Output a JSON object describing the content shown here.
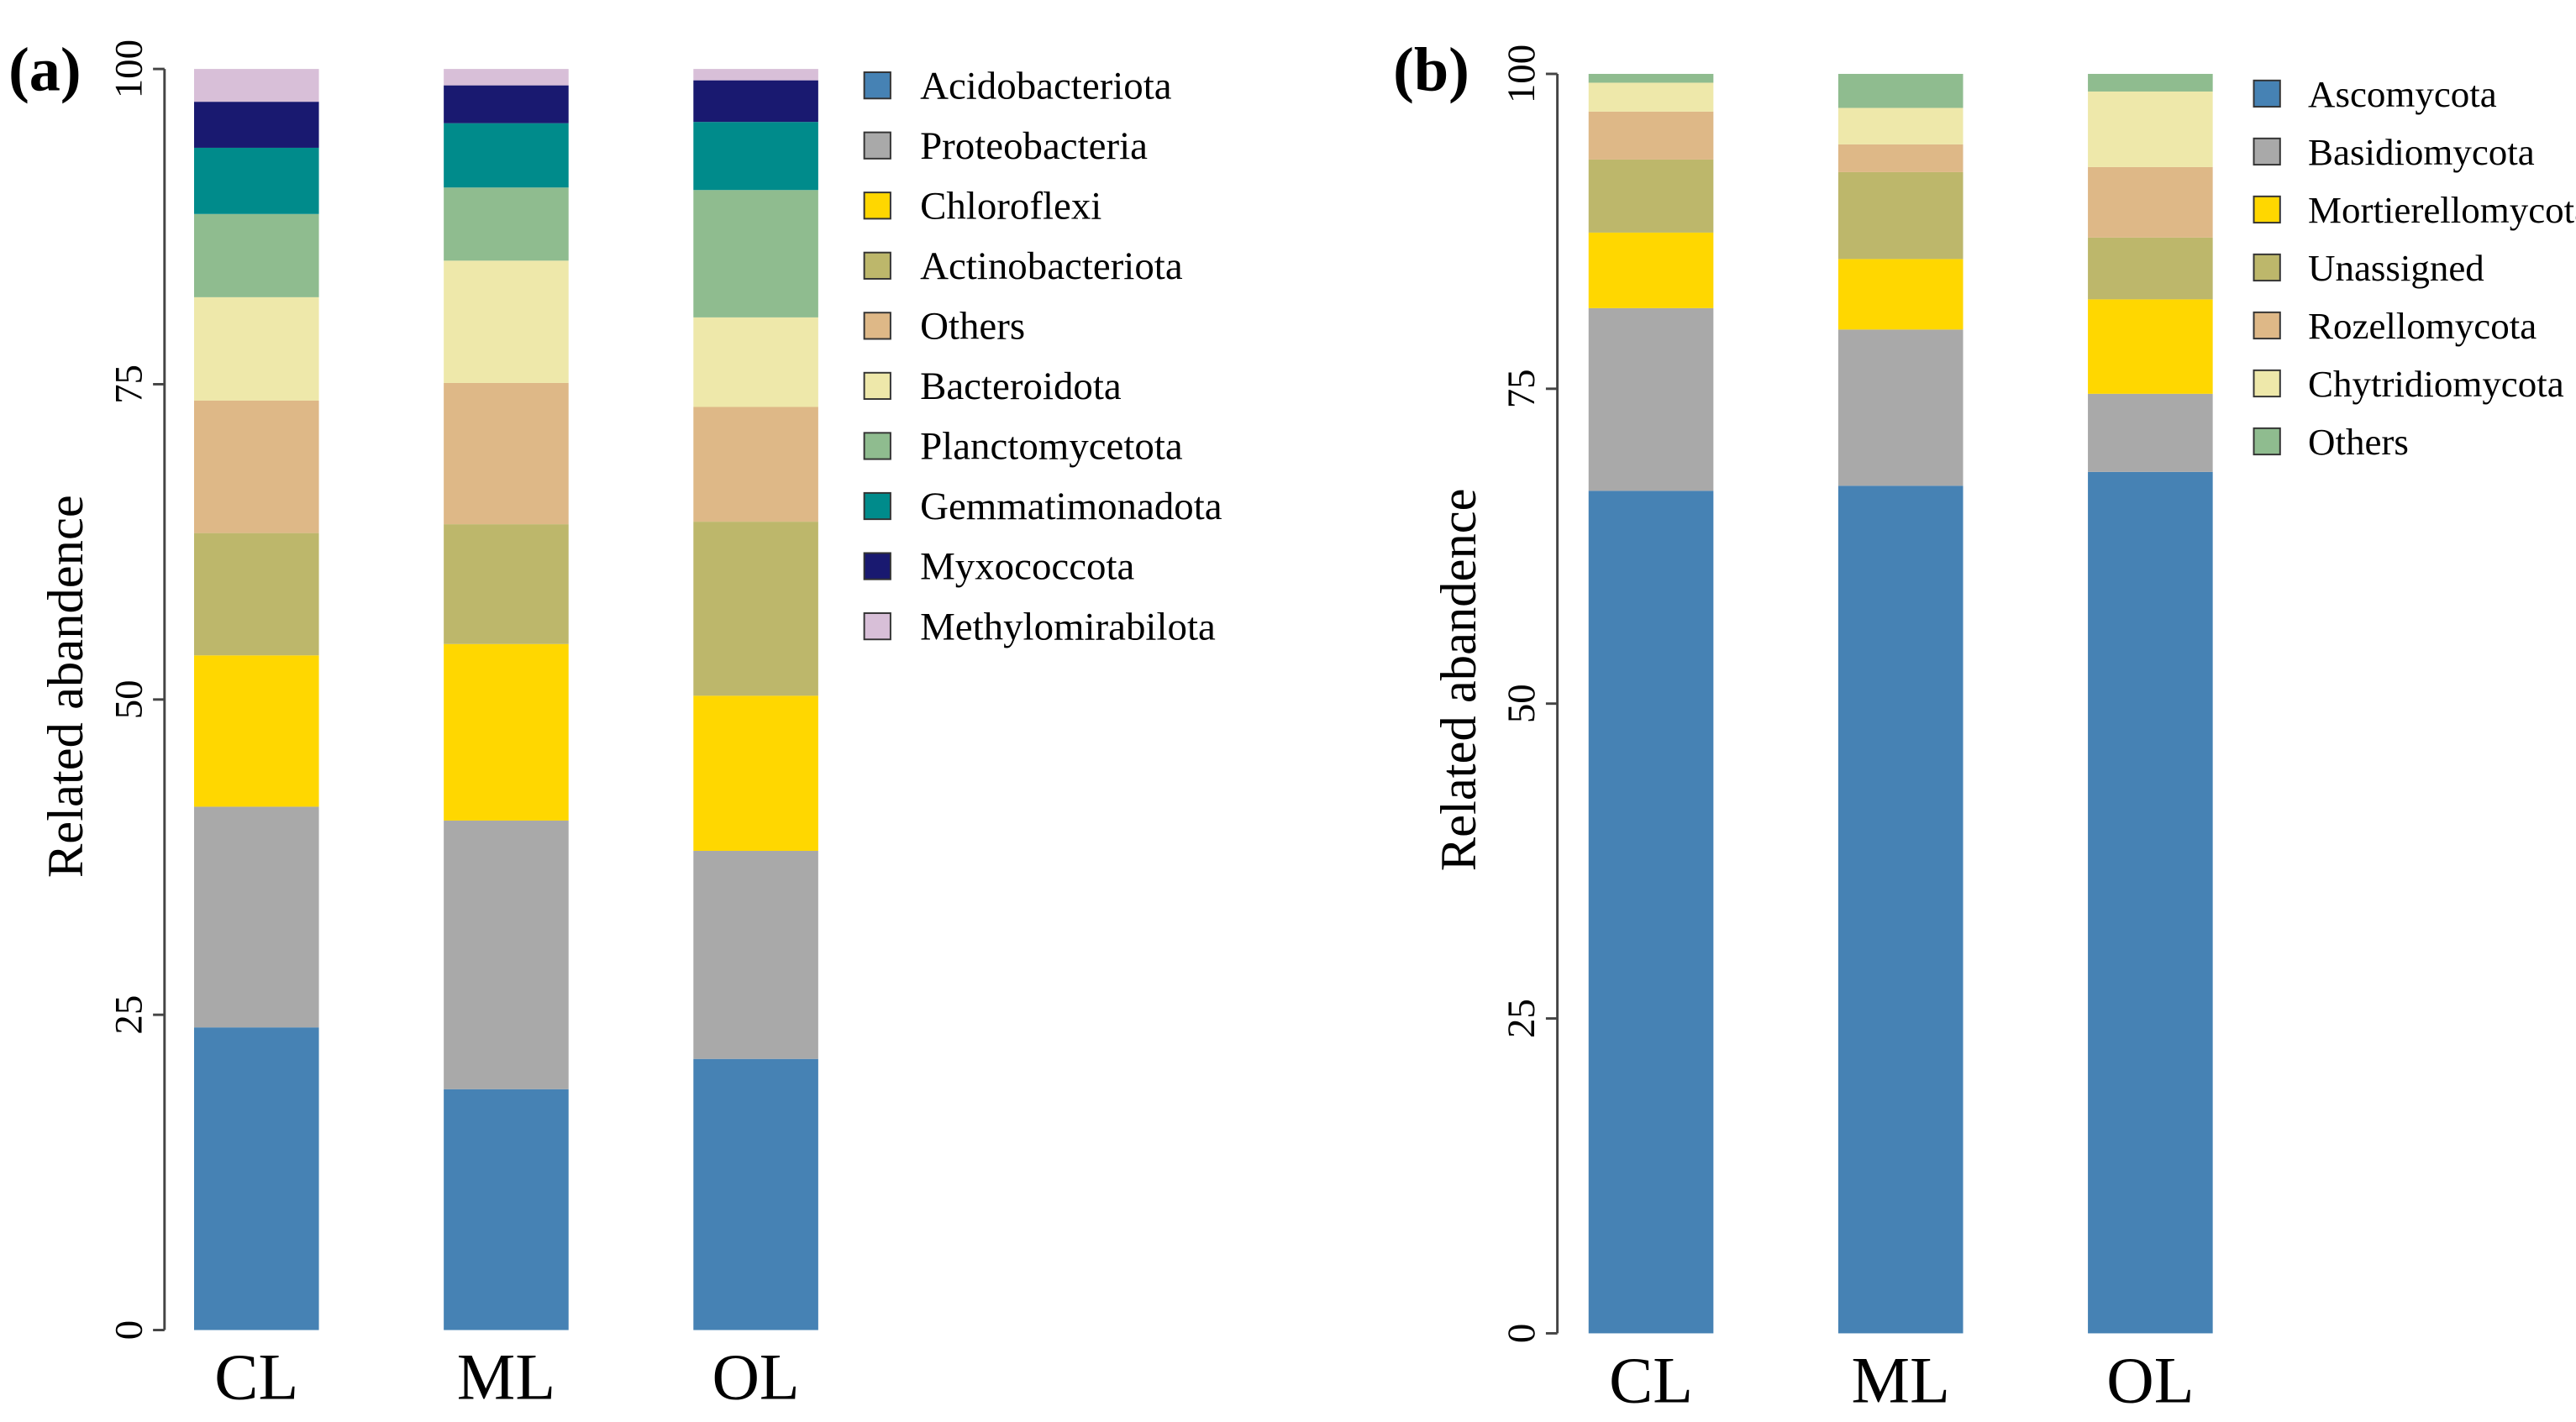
{
  "chart_data": [
    {
      "type": "bar",
      "stacked": true,
      "panel_label": "(a)",
      "ylabel": "Related abandence",
      "xlabel": "",
      "ylim": [
        0,
        100
      ],
      "yticks": [
        "0",
        "25",
        "50",
        "75",
        "100"
      ],
      "categories": [
        "CL",
        "ML",
        "OL"
      ],
      "legend_position": "right",
      "series": [
        {
          "name": "Acidobacteriota",
          "color": "#4682B4",
          "values": [
            24.0,
            19.1,
            21.5
          ]
        },
        {
          "name": "Proteobacteria",
          "color": "#A9A9A9",
          "values": [
            17.5,
            21.3,
            16.5
          ]
        },
        {
          "name": "Chloroflexi",
          "color": "#FFD700",
          "values": [
            12.0,
            14.0,
            12.3
          ]
        },
        {
          "name": "Actinobacteriota",
          "color": "#BDB76B",
          "values": [
            9.7,
            9.5,
            13.8
          ]
        },
        {
          "name": "Others",
          "color": "#DEB887",
          "values": [
            10.5,
            11.2,
            9.1
          ]
        },
        {
          "name": "Bacteroidota",
          "color": "#EEE8AA",
          "values": [
            8.2,
            9.7,
            7.1
          ]
        },
        {
          "name": "Planctomycetota",
          "color": "#8FBC8F",
          "values": [
            6.6,
            5.8,
            10.1
          ]
        },
        {
          "name": "Gemmatimonadota",
          "color": "#008B8B",
          "values": [
            5.25,
            5.1,
            5.4
          ]
        },
        {
          "name": "Myxococcota",
          "color": "#191970",
          "values": [
            3.65,
            3.0,
            3.3
          ]
        },
        {
          "name": "Methylomirabilota",
          "color": "#D8BFD8",
          "values": [
            2.6,
            1.3,
            0.9
          ]
        }
      ]
    },
    {
      "type": "bar",
      "stacked": true,
      "panel_label": "(b)",
      "ylabel": "Related abandence",
      "xlabel": "",
      "ylim": [
        0,
        100
      ],
      "yticks": [
        "0",
        "25",
        "50",
        "75",
        "100"
      ],
      "categories": [
        "CL",
        "ML",
        "OL"
      ],
      "legend_position": "right",
      "series": [
        {
          "name": "Ascomycota",
          "color": "#4682B4",
          "values": [
            66.9,
            67.3,
            68.4
          ]
        },
        {
          "name": "Basidiomycota",
          "color": "#A9A9A9",
          "values": [
            14.5,
            12.4,
            6.2
          ]
        },
        {
          "name": "Mortierellomycota",
          "color": "#FFD700",
          "values": [
            6.0,
            5.6,
            7.5
          ]
        },
        {
          "name": "Unassigned",
          "color": "#BDB76B",
          "values": [
            5.8,
            6.9,
            4.9
          ]
        },
        {
          "name": "Rozellomycota",
          "color": "#DEB887",
          "values": [
            3.8,
            2.2,
            5.6
          ]
        },
        {
          "name": "Chytridiomycota",
          "color": "#EEE8AA",
          "values": [
            2.3,
            2.9,
            6.0
          ]
        },
        {
          "name": "Others",
          "color": "#8FBC8F",
          "values": [
            0.7,
            2.7,
            1.4
          ]
        }
      ]
    }
  ]
}
